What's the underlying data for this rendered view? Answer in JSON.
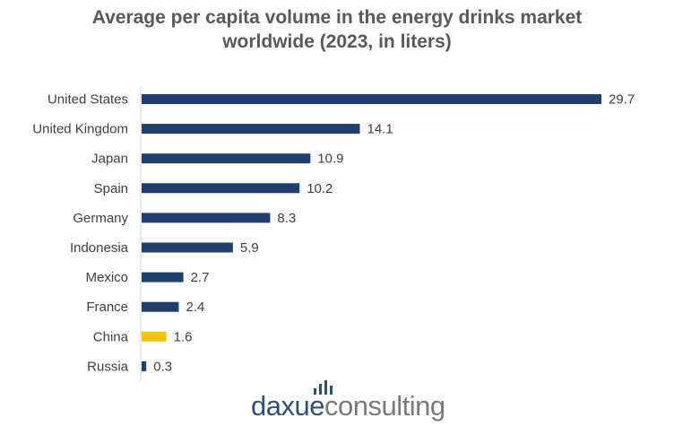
{
  "chart_data": {
    "type": "bar",
    "orientation": "horizontal",
    "title_lines": [
      "Average per capita volume in the energy drinks market",
      "worldwide (2023, in liters)"
    ],
    "categories": [
      "United States",
      "United Kingdom",
      "Japan",
      "Spain",
      "Germany",
      "Indonesia",
      "Mexico",
      "France",
      "China",
      "Russia"
    ],
    "values": [
      29.7,
      14.1,
      10.9,
      10.2,
      8.3,
      5.9,
      2.7,
      2.4,
      1.6,
      0.3
    ],
    "value_labels": [
      "29.7",
      "14.1",
      "10.9",
      "10.2",
      "8.3",
      "5.9",
      "2.7",
      "2.4",
      "1.6",
      "0.3"
    ],
    "xlim": [
      0,
      29.7
    ],
    "grid": false,
    "legend": "none",
    "colors": {
      "default": "#1f3f6e",
      "highlight": "#f2c40f",
      "highlight_category": "China"
    }
  },
  "branding": {
    "logo_part1": "daxue",
    "logo_part2": "consulting",
    "logo_icon": "bar-chart-icon"
  }
}
